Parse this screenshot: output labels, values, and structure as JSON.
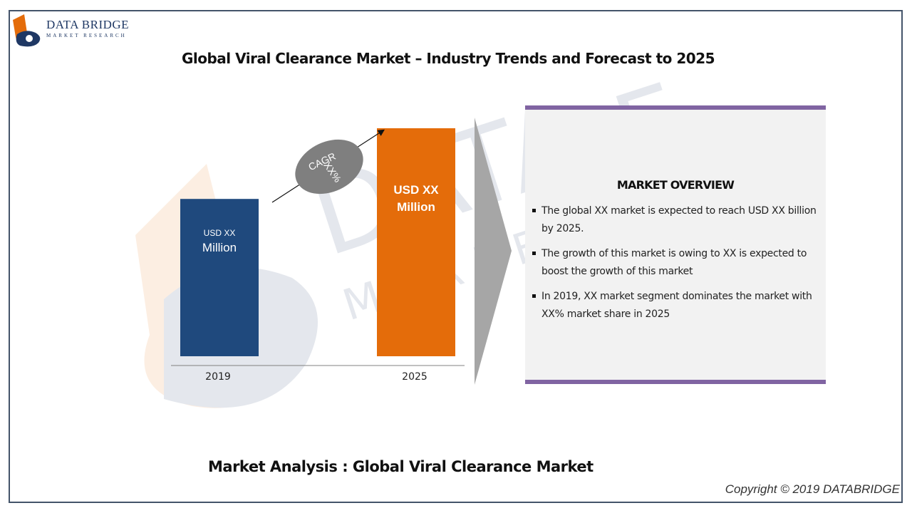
{
  "logo": {
    "name": "DATA BRIDGE",
    "subtitle": "MARKET RESEARCH",
    "colors": {
      "orange": "#e46c0a",
      "navy": "#1f3864"
    }
  },
  "title": "Global Viral Clearance Market – Industry Trends and Forecast to 2025",
  "chart_data": {
    "type": "bar",
    "categories": [
      "2019",
      "2025"
    ],
    "bars": [
      {
        "category": "2019",
        "label_line1": "USD XX",
        "label_line2": "Million",
        "color": "#1f497d",
        "relative_height": 0.69
      },
      {
        "category": "2025",
        "label_line1": "USD XX",
        "label_line2": "Million",
        "color": "#e46c0a",
        "relative_height": 1.0
      }
    ],
    "annotation": {
      "line1": "CAGR",
      "line2": "XX%",
      "color": "#7f7f7f"
    },
    "title": "",
    "xlabel": "",
    "ylabel": "",
    "grid": false,
    "legend": false
  },
  "overview": {
    "heading": "MARKET OVERVIEW",
    "border_color": "#8064a2",
    "items": [
      {
        "line1": "The global XX market is expected to reach USD XX billion",
        "line2": "by 2025."
      },
      {
        "line1": "The growth of this market is owing to XX is expected to",
        "line2": "boost the growth of this market"
      },
      {
        "line1": "In 2019, XX market segment dominates the market with",
        "line2": "XX% market share in 2025"
      }
    ]
  },
  "footer": {
    "subtitle": "Market Analysis : Global Viral Clearance Market",
    "copyright": "Copyright © 2019 DATABRIDGE"
  }
}
